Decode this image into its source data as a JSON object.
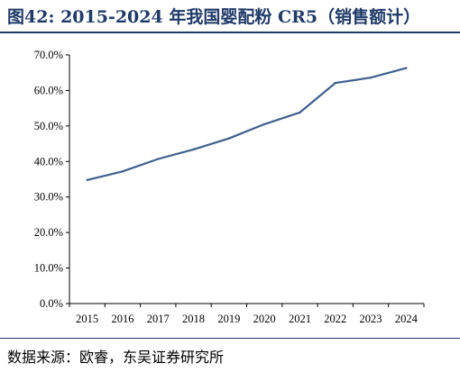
{
  "figure": {
    "title": "图42:  2015-2024 年我国婴配粉 CR5（销售额计）",
    "source": "数据来源：欧睿，东吴证券研究所"
  },
  "colors": {
    "title": "#1f3a68",
    "line": "#3f5f8e",
    "axis": "#000000"
  },
  "chart_data": {
    "type": "line",
    "title": "图42:  2015-2024 年我国婴配粉 CR5（销售额计）",
    "xlabel": "",
    "ylabel": "",
    "categories": [
      "2015",
      "2016",
      "2017",
      "2018",
      "2019",
      "2020",
      "2021",
      "2022",
      "2023",
      "2024"
    ],
    "series": [
      {
        "values": [
          34.8,
          37.2,
          40.7,
          43.4,
          46.5,
          50.5,
          53.8,
          62.1,
          63.6,
          66.3
        ]
      }
    ],
    "ylim": [
      0,
      70
    ],
    "yticks": [
      0,
      10,
      20,
      30,
      40,
      50,
      60,
      70
    ],
    "ytick_labels": [
      "0.0%",
      "10.0%",
      "20.0%",
      "30.0%",
      "40.0%",
      "50.0%",
      "60.0%",
      "70.0%"
    ],
    "grid": false,
    "legend": "none"
  }
}
